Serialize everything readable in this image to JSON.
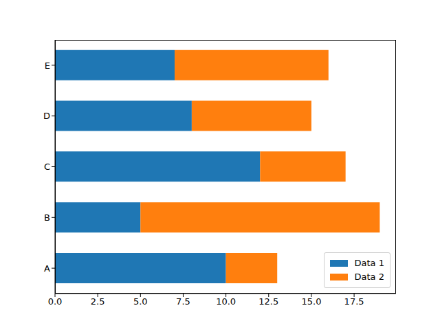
{
  "chart_data": {
    "type": "bar",
    "orientation": "horizontal",
    "stacked": true,
    "categories": [
      "A",
      "B",
      "C",
      "D",
      "E"
    ],
    "series": [
      {
        "name": "Data 1",
        "color": "#1f77b4",
        "values": [
          10,
          5,
          12,
          8,
          7
        ]
      },
      {
        "name": "Data 2",
        "color": "#ff7f0e",
        "values": [
          3,
          14,
          5,
          7,
          9
        ]
      }
    ],
    "xlim": [
      0,
      19.95
    ],
    "xticks": [
      {
        "value": 0,
        "label": "0.0"
      },
      {
        "value": 2.5,
        "label": "2.5"
      },
      {
        "value": 5,
        "label": "5.0"
      },
      {
        "value": 7.5,
        "label": "7.5"
      },
      {
        "value": 10,
        "label": "10.0"
      },
      {
        "value": 12.5,
        "label": "12.5"
      },
      {
        "value": 15,
        "label": "15.0"
      },
      {
        "value": 17.5,
        "label": "17.5"
      }
    ],
    "grid": false,
    "legend": "lower right"
  }
}
